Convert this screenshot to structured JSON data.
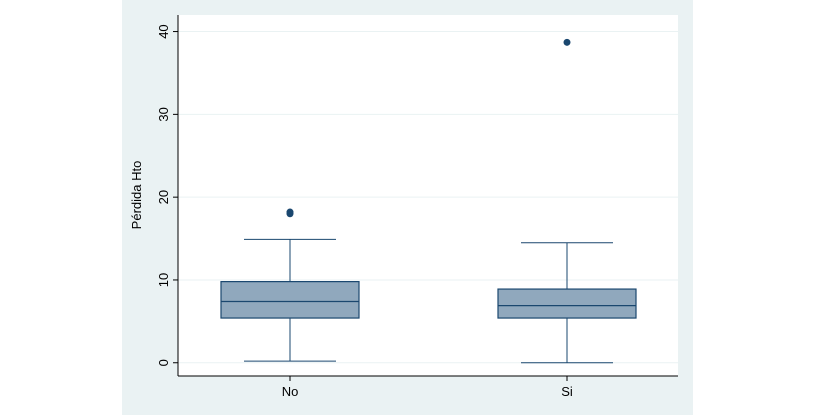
{
  "chart_data": {
    "type": "boxplot",
    "title": "",
    "xlabel": "",
    "ylabel": "Pérdida Hto",
    "ylim": [
      -1.6,
      42
    ],
    "yticks": [
      0,
      10,
      20,
      30,
      40
    ],
    "ytick_labels": [
      "0",
      "10",
      "20",
      "30",
      "40"
    ],
    "grid": true,
    "categories": [
      "No",
      "Si"
    ],
    "boxes": [
      {
        "category": "No",
        "whisker_low": 0.2,
        "q1": 5.4,
        "median": 7.4,
        "q3": 9.8,
        "whisker_high": 14.9,
        "outliers": [
          18.0,
          18.2
        ]
      },
      {
        "category": "Si",
        "whisker_low": 0.0,
        "q1": 5.4,
        "median": 6.9,
        "q3": 8.9,
        "whisker_high": 14.5,
        "outliers": [
          38.7
        ]
      }
    ],
    "colors": {
      "outer_background": "#eaf2f3",
      "plot_background": "#ffffff",
      "grid": "#eaf2f3",
      "box_fill": "#90a8bd",
      "box_stroke": "#1a476f",
      "outlier": "#1a476f",
      "axis": "#000000"
    }
  }
}
